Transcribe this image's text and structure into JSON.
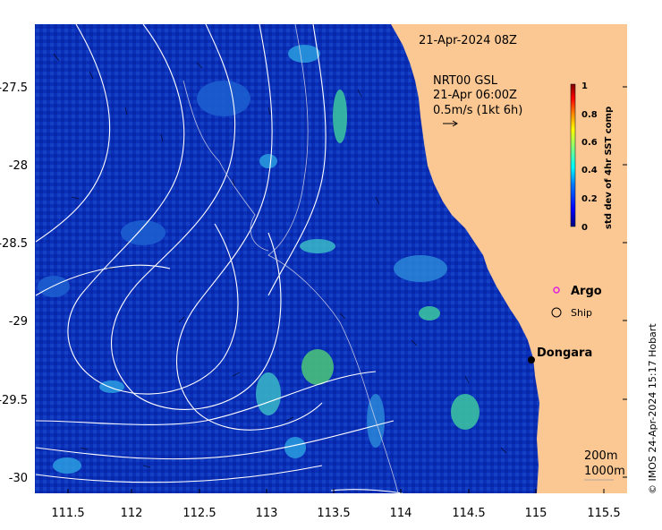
{
  "map": {
    "timestamp": "21-Apr-2024 08Z",
    "current_source": {
      "line1": "NRT00 GSL",
      "line2": "21-Apr 06:00Z",
      "line3": "0.5m/s (1kt 6h)"
    },
    "x_ticks": [
      "111.5",
      "112",
      "112.5",
      "113",
      "113.5",
      "114",
      "114.5",
      "115",
      "115.5"
    ],
    "y_ticks": [
      "-27.5",
      "-28",
      "-28.5",
      "-29",
      "-29.5",
      "-30"
    ],
    "legend": {
      "argo_label": "Argo",
      "ship_label": "Ship"
    },
    "place": {
      "name": "Dongara"
    },
    "isobaths": {
      "label_200": "200m",
      "label_1000": "1000m"
    },
    "colorbar": {
      "title": "std dev of 4hr SST comp",
      "ticks": [
        "1",
        "0.8",
        "0.6",
        "0.4",
        "0.2",
        "0"
      ],
      "colors": [
        "#00007f",
        "#0000ff",
        "#007fff",
        "#00ffff",
        "#7fff7f",
        "#ffff00",
        "#ff7f00",
        "#ff0000",
        "#7f0000"
      ]
    },
    "credit": "© IMOS 24-Apr-2024 15:17 Hobart",
    "colors": {
      "ocean": "#0a2fb8",
      "land": "#fbc894",
      "contour": "#ffffff"
    }
  }
}
